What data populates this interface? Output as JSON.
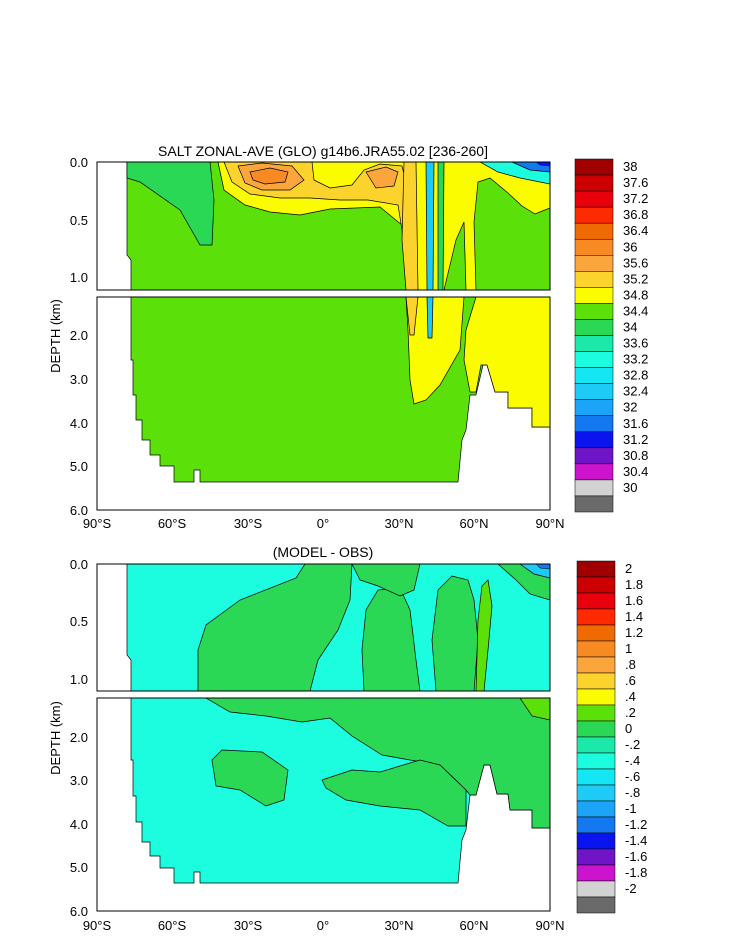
{
  "chart_data": [
    {
      "type": "heatmap",
      "title": "SALT ZONAL-AVE (GLO) g14b6.JRA55.02 [236-260]",
      "ylabel": "DEPTH (km)",
      "xlabel": "",
      "x_ticks": [
        "90°S",
        "60°S",
        "30°S",
        "0°",
        "30°N",
        "60°N",
        "90°N"
      ],
      "y_ticks_upper": [
        "0.0",
        "0.5",
        "1.0"
      ],
      "y_ticks_lower": [
        "2.0",
        "3.0",
        "4.0",
        "5.0",
        "6.0"
      ],
      "xlim": [
        -90,
        90
      ],
      "ylim_upper_km": [
        0,
        1.1
      ],
      "ylim_lower_km": [
        1.1,
        6.0
      ],
      "colorbar": {
        "labels": [
          "38",
          "37.6",
          "37.2",
          "36.8",
          "36.4",
          "36",
          "35.6",
          "35.2",
          "34.8",
          "34.4",
          "34",
          "33.6",
          "33.2",
          "32.8",
          "32.4",
          "32",
          "31.6",
          "31.2",
          "30.8",
          "30.4",
          "30"
        ],
        "colors": [
          "#a00000",
          "#cc0000",
          "#e8000c",
          "#ff2a00",
          "#ef6a00",
          "#f88a24",
          "#faa63c",
          "#fcd32c",
          "#fcfc00",
          "#5ce00a",
          "#2ad856",
          "#1ce8aa",
          "#1cfcde",
          "#14e6f4",
          "#1ecaf6",
          "#1ca4f8",
          "#1478f0",
          "#0a14f0",
          "#7014c8",
          "#cc14ce",
          "#d2d2d2",
          "#6a6a6a"
        ]
      }
    },
    {
      "type": "heatmap",
      "title": "(MODEL - OBS)",
      "ylabel": "DEPTH (km)",
      "xlabel": "",
      "x_ticks": [
        "90°S",
        "60°S",
        "30°S",
        "0°",
        "30°N",
        "60°N",
        "90°N"
      ],
      "y_ticks_upper": [
        "0.0",
        "0.5",
        "1.0"
      ],
      "y_ticks_lower": [
        "2.0",
        "3.0",
        "4.0",
        "5.0",
        "6.0"
      ],
      "xlim": [
        -90,
        90
      ],
      "ylim_upper_km": [
        0,
        1.1
      ],
      "ylim_lower_km": [
        1.1,
        6.0
      ],
      "colorbar": {
        "labels": [
          "2",
          "1.8",
          "1.6",
          "1.4",
          "1.2",
          "1",
          ".8",
          ".6",
          ".4",
          ".2",
          "0",
          "-.2",
          "-.4",
          "-.6",
          "-.8",
          "-1",
          "-1.2",
          "-1.4",
          "-1.6",
          "-1.8",
          "-2"
        ],
        "colors": [
          "#a00000",
          "#cc0000",
          "#e8000c",
          "#ff2a00",
          "#ef6a00",
          "#f88a24",
          "#faa63c",
          "#fcd32c",
          "#fcfc00",
          "#5ce00a",
          "#2ad856",
          "#1ce8aa",
          "#1cfcde",
          "#14e6f4",
          "#1ecaf6",
          "#1ca4f8",
          "#1478f0",
          "#0a14f0",
          "#7014c8",
          "#cc14ce",
          "#d2d2d2",
          "#6a6a6a"
        ]
      }
    }
  ]
}
